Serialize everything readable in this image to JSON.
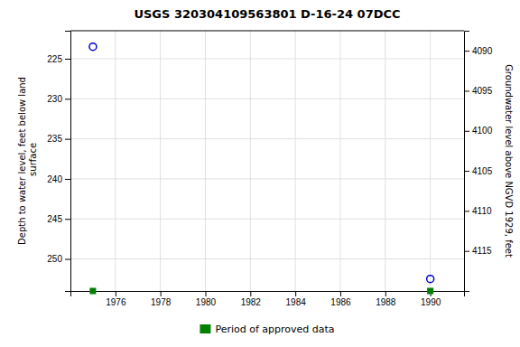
{
  "chart_data": {
    "type": "scatter",
    "title": "USGS 320304109563801 D-16-24 07DCC",
    "ylabel": "Depth to water level, feet below land\n surface",
    "y2label": "Groundwater level above NGVD 1929, feet",
    "series": [
      {
        "x": [
          1975.0,
          1990.0
        ],
        "values": [
          223.5,
          252.5
        ],
        "color": "#0000cc",
        "marker": "circle"
      },
      {
        "name": "Period of approved data",
        "x": [
          1975.0,
          1990.0
        ],
        "color": "#008000",
        "marker": "square"
      }
    ],
    "xlim": [
      1974.0,
      1991.5
    ],
    "xticks": [
      1976,
      1978,
      1980,
      1982,
      1984,
      1986,
      1988,
      1990
    ],
    "ylim": [
      221.5,
      254.0
    ],
    "yticks": [
      225,
      230,
      235,
      240,
      245,
      250
    ],
    "y2lim": [
      4087.5,
      4120.0
    ],
    "y2ticks": [
      4090,
      4095,
      4100,
      4105,
      4110,
      4115
    ],
    "grid": true,
    "legend": "bottom"
  }
}
